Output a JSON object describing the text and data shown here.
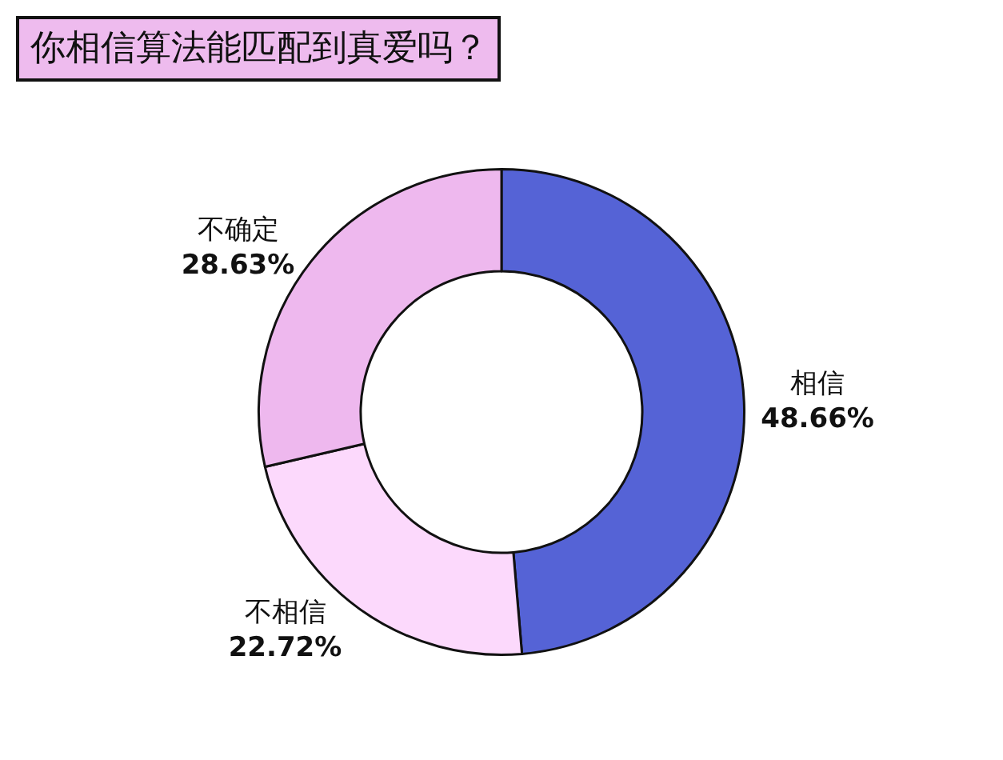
{
  "chart_data": {
    "type": "donut",
    "title": "你相信算法能匹配到真爱吗？",
    "categories": [
      "相信",
      "不相信",
      "不确定"
    ],
    "values": [
      48.66,
      22.72,
      28.63
    ],
    "colors": [
      "#5563d6",
      "#fcd9fc",
      "#eeb8ee"
    ],
    "value_labels": [
      "48.66%",
      "22.72%",
      "28.63%"
    ],
    "legend": false
  }
}
